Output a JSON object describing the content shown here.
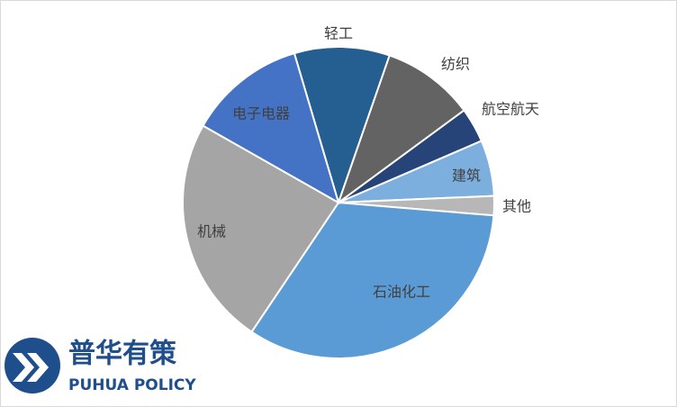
{
  "chart_data": {
    "type": "pie",
    "categories": [
      "轻工",
      "纺织",
      "航空航天",
      "建筑",
      "其他",
      "石油化工",
      "机械",
      "电子电器"
    ],
    "values": [
      9.9,
      9.6,
      3.6,
      5.8,
      2.0,
      33.1,
      23.8,
      12.2
    ],
    "colors": [
      "#255e91",
      "#636363",
      "#264478",
      "#7cafdd",
      "#b7b7b7",
      "#5b9bd5",
      "#a5a5a5",
      "#4472c4"
    ]
  },
  "logo": {
    "name": "普华有策",
    "subtitle": "PUHUA POLICY"
  }
}
